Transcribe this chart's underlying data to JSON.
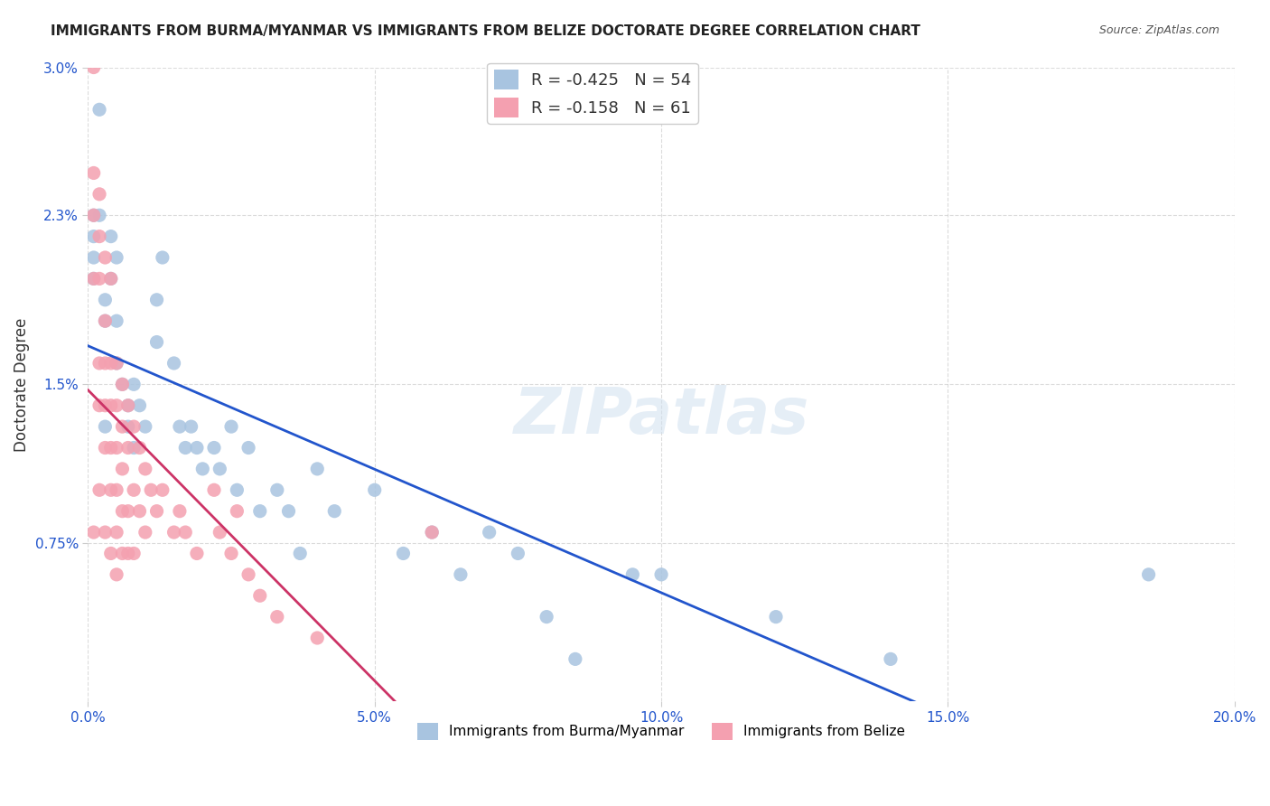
{
  "title": "IMMIGRANTS FROM BURMA/MYANMAR VS IMMIGRANTS FROM BELIZE DOCTORATE DEGREE CORRELATION CHART",
  "source": "Source: ZipAtlas.com",
  "ylabel": "Doctorate Degree",
  "xlabel_ticks": [
    "0.0%",
    "5.0%",
    "10.0%",
    "15.0%",
    "20.0%"
  ],
  "xlabel_vals": [
    0.0,
    0.05,
    0.1,
    0.15,
    0.2
  ],
  "ylabel_ticks": [
    "0.75%",
    "1.5%",
    "2.3%",
    "3.0%"
  ],
  "ylabel_vals": [
    0.0075,
    0.015,
    0.023,
    0.03
  ],
  "xlim": [
    0.0,
    0.2
  ],
  "ylim": [
    0.0,
    0.03
  ],
  "blue_color": "#a8c4e0",
  "pink_color": "#f4a0b0",
  "blue_line_color": "#2255cc",
  "pink_line_color": "#cc3366",
  "blue_R": -0.425,
  "blue_N": 54,
  "pink_R": -0.158,
  "pink_N": 61,
  "legend_label_blue": "Immigrants from Burma/Myanmar",
  "legend_label_pink": "Immigrants from Belize",
  "watermark": "ZIPatlas",
  "blue_scatter_x": [
    0.001,
    0.001,
    0.001,
    0.001,
    0.002,
    0.002,
    0.003,
    0.003,
    0.003,
    0.004,
    0.004,
    0.005,
    0.005,
    0.005,
    0.006,
    0.007,
    0.007,
    0.008,
    0.008,
    0.009,
    0.01,
    0.012,
    0.012,
    0.013,
    0.015,
    0.016,
    0.017,
    0.018,
    0.019,
    0.02,
    0.022,
    0.023,
    0.025,
    0.026,
    0.028,
    0.03,
    0.033,
    0.035,
    0.037,
    0.04,
    0.043,
    0.05,
    0.055,
    0.06,
    0.065,
    0.07,
    0.075,
    0.08,
    0.085,
    0.095,
    0.1,
    0.12,
    0.14,
    0.185
  ],
  "blue_scatter_y": [
    0.023,
    0.022,
    0.021,
    0.02,
    0.028,
    0.023,
    0.019,
    0.018,
    0.013,
    0.022,
    0.02,
    0.021,
    0.018,
    0.016,
    0.015,
    0.014,
    0.013,
    0.015,
    0.012,
    0.014,
    0.013,
    0.019,
    0.017,
    0.021,
    0.016,
    0.013,
    0.012,
    0.013,
    0.012,
    0.011,
    0.012,
    0.011,
    0.013,
    0.01,
    0.012,
    0.009,
    0.01,
    0.009,
    0.007,
    0.011,
    0.009,
    0.01,
    0.007,
    0.008,
    0.006,
    0.008,
    0.007,
    0.004,
    0.002,
    0.006,
    0.006,
    0.004,
    0.002,
    0.006
  ],
  "pink_scatter_x": [
    0.001,
    0.001,
    0.001,
    0.001,
    0.001,
    0.002,
    0.002,
    0.002,
    0.002,
    0.002,
    0.002,
    0.003,
    0.003,
    0.003,
    0.003,
    0.003,
    0.003,
    0.004,
    0.004,
    0.004,
    0.004,
    0.004,
    0.004,
    0.005,
    0.005,
    0.005,
    0.005,
    0.005,
    0.005,
    0.006,
    0.006,
    0.006,
    0.006,
    0.006,
    0.007,
    0.007,
    0.007,
    0.007,
    0.008,
    0.008,
    0.008,
    0.009,
    0.009,
    0.01,
    0.01,
    0.011,
    0.012,
    0.013,
    0.015,
    0.016,
    0.017,
    0.019,
    0.022,
    0.023,
    0.025,
    0.026,
    0.028,
    0.03,
    0.033,
    0.04,
    0.06
  ],
  "pink_scatter_y": [
    0.03,
    0.025,
    0.023,
    0.02,
    0.008,
    0.024,
    0.022,
    0.02,
    0.016,
    0.014,
    0.01,
    0.021,
    0.018,
    0.016,
    0.014,
    0.012,
    0.008,
    0.02,
    0.016,
    0.014,
    0.012,
    0.01,
    0.007,
    0.016,
    0.014,
    0.012,
    0.01,
    0.008,
    0.006,
    0.015,
    0.013,
    0.011,
    0.009,
    0.007,
    0.014,
    0.012,
    0.009,
    0.007,
    0.013,
    0.01,
    0.007,
    0.012,
    0.009,
    0.011,
    0.008,
    0.01,
    0.009,
    0.01,
    0.008,
    0.009,
    0.008,
    0.007,
    0.01,
    0.008,
    0.007,
    0.009,
    0.006,
    0.005,
    0.004,
    0.003,
    0.008
  ],
  "grid_color": "#cccccc",
  "background_color": "#ffffff"
}
